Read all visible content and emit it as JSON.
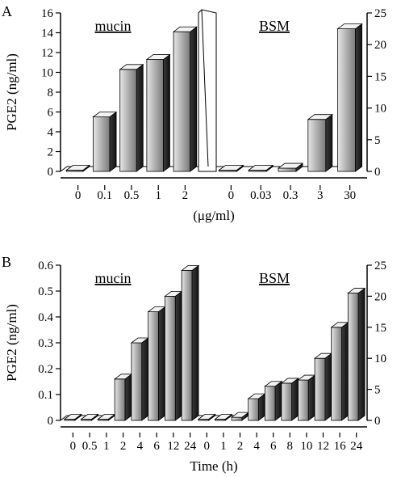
{
  "chart_data": [
    {
      "type": "bar",
      "panel_label": "A",
      "ylabel": "PGE2 (ng/ml)",
      "xlabel": "(μg/ml)",
      "left_axis": {
        "ylim": [
          0,
          16
        ],
        "ticks": [
          "0",
          "2",
          "4",
          "6",
          "8",
          "10",
          "12",
          "14",
          "16"
        ]
      },
      "right_axis": {
        "ylim": [
          0,
          25
        ],
        "ticks": [
          "0",
          "5",
          "10",
          "15",
          "20",
          "25"
        ]
      },
      "grid": false,
      "groups": [
        {
          "name": "mucin",
          "axis": "left",
          "categories": [
            "0",
            "0.1",
            "0.5",
            "1",
            "2"
          ],
          "values": [
            0,
            5.5,
            10.3,
            11.3,
            14.1
          ]
        },
        {
          "name": "BSM",
          "axis": "right",
          "categories": [
            "0",
            "0.03",
            "0.3",
            "3",
            "30"
          ],
          "values": [
            0,
            0,
            0.5,
            8.2,
            22.5
          ]
        }
      ]
    },
    {
      "type": "bar",
      "panel_label": "B",
      "ylabel": "PGE2 (ng/ml)",
      "xlabel": "Time (h)",
      "left_axis": {
        "ylim": [
          0,
          0.6
        ],
        "ticks": [
          "0",
          "0.1",
          "0.2",
          "0.3",
          "0.4",
          "0.5",
          "0.6"
        ]
      },
      "right_axis": {
        "ylim": [
          0,
          25
        ],
        "ticks": [
          "0",
          "5",
          "10",
          "15",
          "20",
          "25"
        ]
      },
      "grid": false,
      "groups": [
        {
          "name": "mucin",
          "axis": "left",
          "categories": [
            "0",
            "0.5",
            "1",
            "2",
            "4",
            "6",
            "12",
            "24"
          ],
          "values": [
            0,
            0,
            0,
            0.16,
            0.3,
            0.42,
            0.48,
            0.58
          ]
        },
        {
          "name": "BSM",
          "axis": "right",
          "categories": [
            "0",
            "1",
            "2",
            "4",
            "6",
            "8",
            "10",
            "12",
            "16",
            "24"
          ],
          "values": [
            0,
            0,
            0.5,
            3.5,
            5.5,
            6,
            6.5,
            10,
            15,
            20.5
          ]
        }
      ]
    }
  ]
}
